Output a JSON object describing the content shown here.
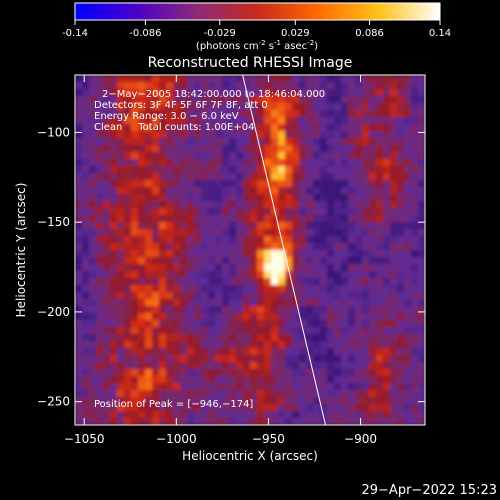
{
  "colorbar": {
    "tick_labels": [
      "-0.14",
      "-0.086",
      "-0.029",
      "0.029",
      "0.086",
      "0.14"
    ],
    "tick_values": [
      -0.14,
      -0.086,
      -0.029,
      0.029,
      0.086,
      0.14
    ],
    "range": [
      -0.14,
      0.14
    ],
    "units_main": "(photons cm",
    "units_exp1": "-2",
    "units_mid1": " s",
    "units_exp2": "-1",
    "units_mid2": " asec",
    "units_exp3": "-2",
    "units_end": ")",
    "colors": [
      "#0000ff",
      "#4b00c8",
      "#8c2a7a",
      "#c82a1a",
      "#ff6a00",
      "#ffc21a",
      "#ffffff"
    ]
  },
  "chart_data": {
    "type": "heatmap",
    "title": "Reconstructed RHESSI Image",
    "xlabel": "Heliocentric X (arcsec)",
    "ylabel": "Heliocentric Y (arcsec)",
    "xlim": [
      -1055,
      -865
    ],
    "ylim": [
      -263,
      -68
    ],
    "x_ticks": [
      -1050,
      -1000,
      -950,
      -900
    ],
    "x_tick_labels": [
      "−1050",
      "−1000",
      "−950",
      "−900"
    ],
    "y_ticks": [
      -100,
      -150,
      -200,
      -250
    ],
    "y_tick_labels": [
      "−100",
      "−150",
      "−200",
      "−250"
    ],
    "peak": {
      "x": -946,
      "y": -174
    },
    "limb_line": {
      "from": [
        -964,
        -68
      ],
      "to": [
        -919,
        -263
      ]
    },
    "annotations": {
      "time": "2−May−2005 18:42:00.000 to 18:46:04.000",
      "detectors": "Detectors: 3F 4F 5F 6F 7F 8F, att 0",
      "energy": "Energy Range: 3.0 − 6.0 keV",
      "clean": "Clean     Total counts: 1.00E+04",
      "peak_label": "Position of Peak = [−946,−174]"
    }
  },
  "footer": {
    "date": "29−Apr−2022 15:23"
  }
}
